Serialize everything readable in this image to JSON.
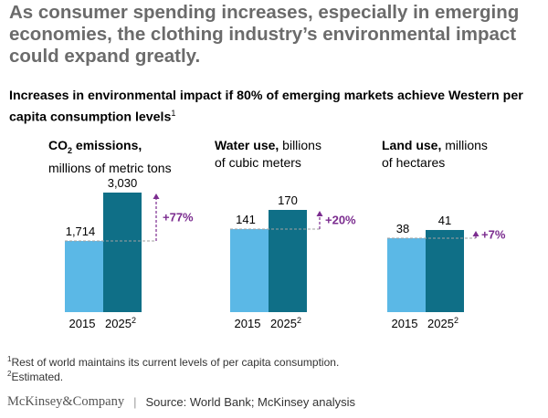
{
  "headline": "As consumer spending increases, especially in emerging economies, the clothing industry’s environmental impact could expand greatly.",
  "subheading": "Increases in environmental impact if 80% of emerging markets achieve Western per capita consumption levels",
  "subheading_footnote_mark": "1",
  "panels": [
    {
      "title_bold": "CO",
      "title_bold_sub": "2",
      "title_bold_rest": " emissions,",
      "title_unit": "millions of metric tons"
    },
    {
      "title_bold": "Water use,",
      "title_bold_sub": "",
      "title_bold_rest": "",
      "title_inline": " billions",
      "title_unit": "of cubic meters"
    },
    {
      "title_bold": "Land use,",
      "title_bold_sub": "",
      "title_bold_rest": "",
      "title_inline": " millions",
      "title_unit": "of hectares"
    }
  ],
  "chart_data": [
    {
      "type": "bar",
      "title": "CO2 emissions, millions of metric tons",
      "categories": [
        "2015",
        "2025"
      ],
      "category_marks": [
        "",
        "2"
      ],
      "values": [
        1714,
        3030
      ],
      "value_labels": [
        "1,714",
        "3,030"
      ],
      "change_label": "+77%"
    },
    {
      "type": "bar",
      "title": "Water use, billions of cubic meters",
      "categories": [
        "2015",
        "2025"
      ],
      "category_marks": [
        "",
        "2"
      ],
      "values": [
        141,
        170
      ],
      "value_labels": [
        "141",
        "170"
      ],
      "change_label": "+20%"
    },
    {
      "type": "bar",
      "title": "Land use, millions of hectares",
      "categories": [
        "2015",
        "2025"
      ],
      "category_marks": [
        "",
        "2"
      ],
      "values": [
        38,
        41
      ],
      "value_labels": [
        "38",
        "41"
      ],
      "change_label": "+7%"
    }
  ],
  "colors": {
    "bar_2015": "#5bb8e6",
    "bar_2025": "#0f6f87",
    "change": "#7b2c8f",
    "baseline": "#a0a0a0"
  },
  "footnotes": [
    {
      "mark": "1",
      "text": "Rest of world maintains its current levels of per capita consumption."
    },
    {
      "mark": "2",
      "text": "Estimated."
    }
  ],
  "brand": "McKinsey&Company",
  "source": "Source: World Bank; McKinsey analysis"
}
